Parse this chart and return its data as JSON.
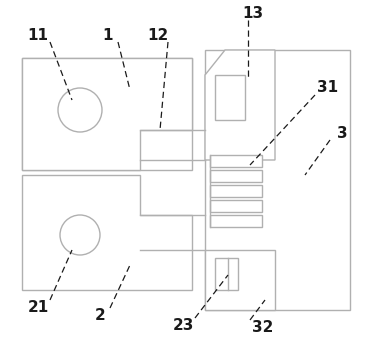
{
  "bg_color": "#ffffff",
  "lc": "#b0b0b0",
  "tc": "#1a1a1a",
  "figsize": [
    3.72,
    3.43
  ],
  "dpi": 100,
  "lw": 1.0
}
